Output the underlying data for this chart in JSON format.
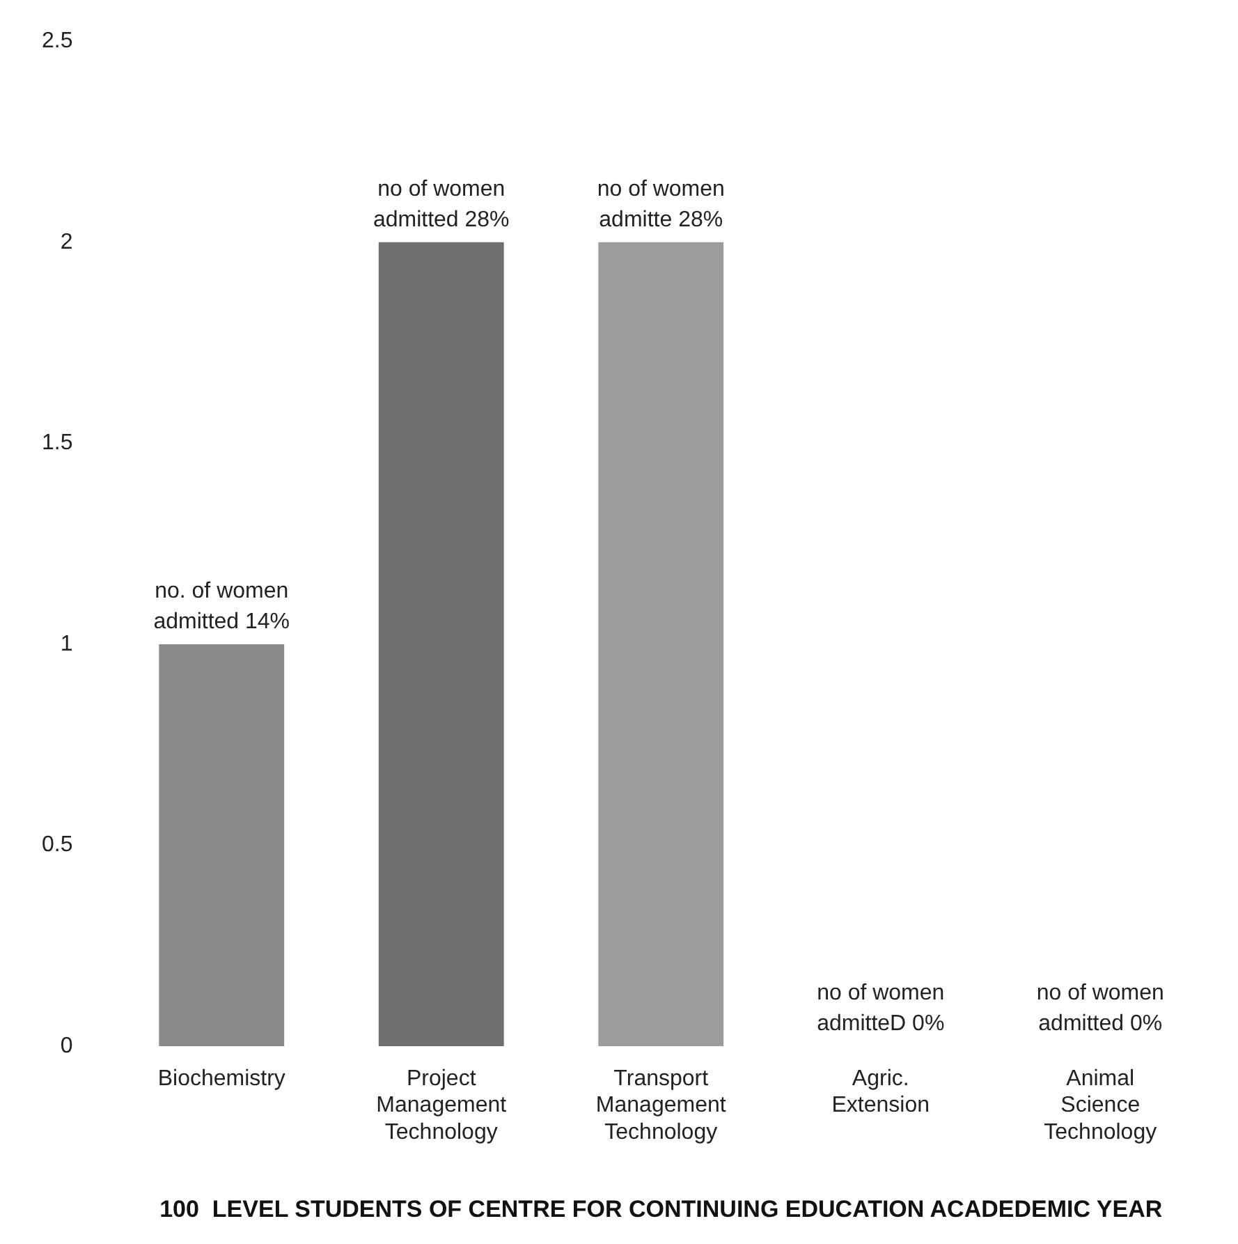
{
  "chart_data": {
    "type": "bar",
    "xlabel": "100  LEVEL STUDENTS OF CENTRE FOR CONTINUING EDUCATION ACADEDEMIC YEAR",
    "categories": [
      "Biochemistry",
      "Project Management Technology",
      "Transport Management Technology",
      "Agric. Extension",
      "Animal Science Technology"
    ],
    "values": [
      1,
      2,
      2,
      0,
      0
    ],
    "colors": [
      "#8a8a8a",
      "#6f6f6f",
      "#9c9c9c",
      "#8a8a8a",
      "#8a8a8a"
    ],
    "value_labels": [
      "no. of women admitted 14%",
      "no of women admitted 28%",
      "no of women admitte 28%",
      "no of women admitteD 0%",
      "no of women admitted 0%"
    ],
    "ylim": [
      0,
      2.5
    ],
    "yticks": [
      0,
      0.5,
      1,
      1.5,
      2,
      2.5
    ],
    "grid": false,
    "legend": false
  }
}
